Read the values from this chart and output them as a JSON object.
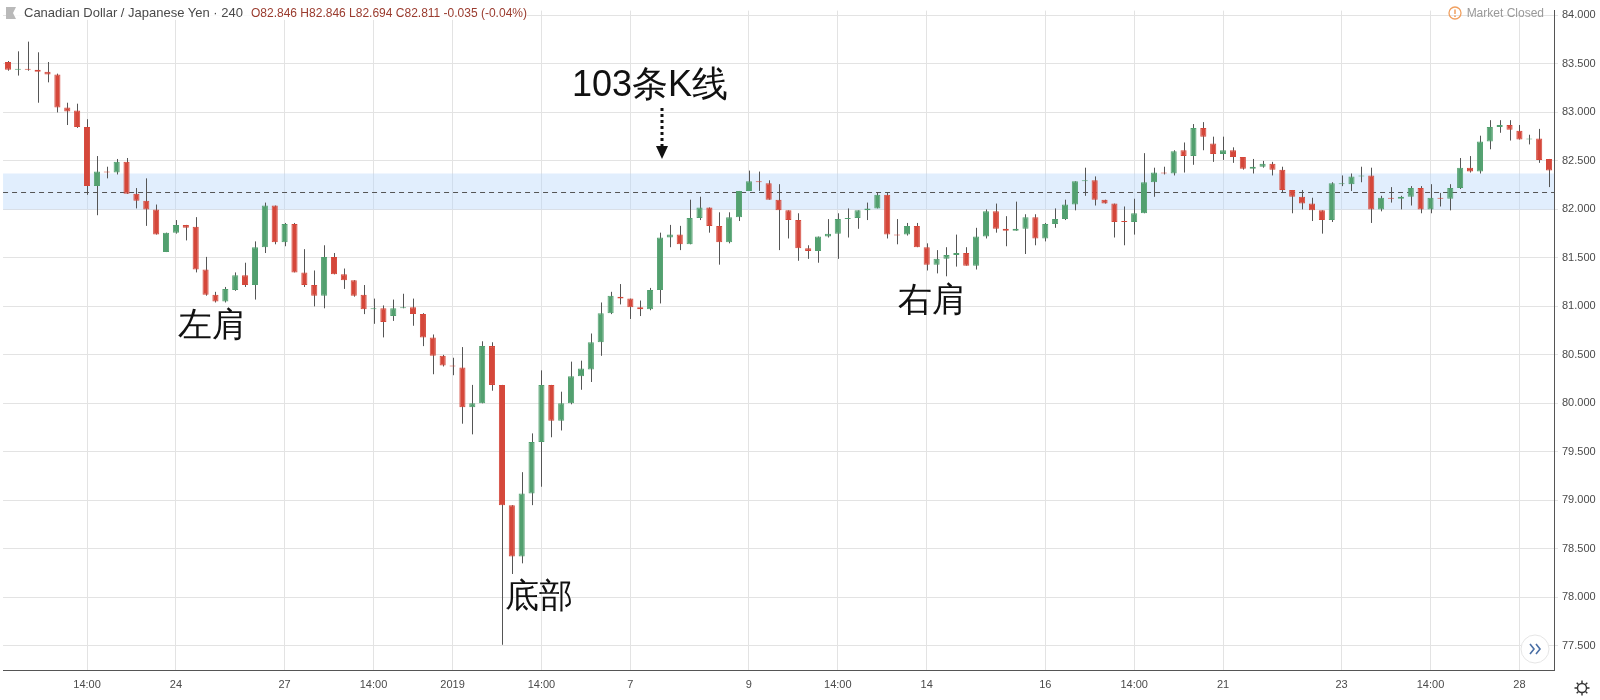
{
  "chart_data": {
    "type": "candlestick",
    "title": "Canadian Dollar / Japanese Yen · 240",
    "subtitle": "O82.846 H82.846 L82.694 C82.811 -0.035 (-0.04%)",
    "annotations": [
      "Market Closed",
      "103条K线",
      "左肩",
      "底部",
      "右肩"
    ],
    "categories": [
      null,
      null,
      null,
      null,
      null,
      null,
      null,
      null,
      "14:00",
      null,
      null,
      null,
      null,
      null,
      null,
      null,
      null,
      "24",
      null,
      null,
      null,
      null,
      null,
      null,
      null,
      null,
      null,
      null,
      "27",
      null,
      null,
      null,
      null,
      null,
      null,
      null,
      null,
      "14:00",
      null,
      null,
      null,
      null,
      null,
      null,
      null,
      "2019",
      null,
      null,
      null,
      null,
      null,
      null,
      null,
      null,
      "14:00",
      null,
      null,
      null,
      null,
      null,
      null,
      null,
      null,
      "7",
      null,
      null,
      null,
      null,
      null,
      null,
      null,
      null,
      null,
      null,
      null,
      "9",
      null,
      null,
      null,
      null,
      null,
      null,
      null,
      null,
      "14:00",
      null,
      null,
      null,
      null,
      null,
      null,
      null,
      null,
      "14",
      null,
      null,
      null,
      null,
      null,
      null,
      null,
      null,
      null,
      null,
      null,
      "16",
      null,
      null,
      null,
      null,
      null,
      null,
      null,
      null,
      "14:00",
      null,
      null,
      null,
      null,
      null,
      null,
      null,
      null,
      "21",
      null,
      null,
      null,
      null,
      null,
      null,
      null,
      null,
      null,
      null,
      null,
      "23",
      null,
      null,
      null,
      null,
      null,
      null,
      null,
      null,
      "14:00",
      null,
      null,
      null,
      null,
      null,
      null,
      null,
      null,
      "28",
      null,
      null,
      null
    ],
    "ohlc": [
      [
        83.52,
        83.53,
        83.43,
        83.44
      ],
      [
        83.44,
        83.63,
        83.38,
        83.45
      ],
      [
        83.45,
        83.73,
        83.43,
        83.44
      ],
      [
        83.44,
        83.62,
        83.1,
        83.42
      ],
      [
        83.42,
        83.52,
        83.31,
        83.39
      ],
      [
        83.39,
        83.4,
        83.0,
        83.05
      ],
      [
        83.05,
        83.1,
        82.87,
        83.01
      ],
      [
        83.02,
        83.09,
        82.84,
        82.85
      ],
      [
        82.85,
        82.93,
        82.15,
        82.24
      ],
      [
        82.24,
        82.55,
        81.94,
        82.39
      ],
      [
        82.39,
        82.44,
        82.32,
        82.38
      ],
      [
        82.38,
        82.52,
        82.36,
        82.49
      ],
      [
        82.49,
        82.53,
        82.16,
        82.16
      ],
      [
        82.16,
        82.22,
        82.01,
        82.09
      ],
      [
        82.09,
        82.32,
        81.83,
        82.0
      ],
      [
        82.0,
        82.05,
        81.74,
        81.74
      ],
      [
        81.56,
        81.76,
        81.56,
        81.76
      ],
      [
        81.76,
        81.89,
        81.75,
        81.84
      ],
      [
        81.84,
        81.84,
        81.68,
        81.81
      ],
      [
        81.82,
        81.92,
        81.35,
        81.38
      ],
      [
        81.38,
        81.51,
        81.11,
        81.12
      ],
      [
        81.12,
        81.15,
        81.04,
        81.05
      ],
      [
        81.05,
        81.2,
        81.04,
        81.18
      ],
      [
        81.17,
        81.35,
        81.16,
        81.32
      ],
      [
        81.32,
        81.45,
        81.2,
        81.22
      ],
      [
        81.22,
        81.67,
        81.07,
        81.61
      ],
      [
        81.61,
        82.07,
        81.55,
        82.04
      ],
      [
        82.04,
        82.04,
        81.64,
        81.66
      ],
      [
        81.66,
        81.86,
        81.62,
        81.85
      ],
      [
        81.85,
        81.86,
        81.35,
        81.35
      ],
      [
        81.35,
        81.59,
        81.2,
        81.22
      ],
      [
        81.22,
        81.37,
        81.0,
        81.11
      ],
      [
        81.11,
        81.63,
        80.98,
        81.51
      ],
      [
        81.51,
        81.55,
        81.33,
        81.33
      ],
      [
        81.33,
        81.39,
        81.18,
        81.27
      ],
      [
        81.27,
        81.27,
        81.1,
        81.11
      ],
      [
        81.12,
        81.22,
        80.92,
        80.97
      ],
      [
        80.97,
        81.08,
        80.82,
        80.98
      ],
      [
        80.98,
        81.01,
        80.68,
        80.84
      ],
      [
        80.9,
        81.07,
        80.85,
        80.98
      ],
      [
        80.98,
        81.13,
        80.98,
        80.99
      ],
      [
        80.99,
        81.08,
        80.8,
        80.92
      ],
      [
        80.92,
        80.93,
        80.59,
        80.68
      ],
      [
        80.68,
        80.71,
        80.3,
        80.49
      ],
      [
        80.49,
        80.5,
        80.38,
        80.39
      ],
      [
        80.39,
        80.47,
        80.29,
        80.38
      ],
      [
        80.37,
        80.58,
        79.79,
        79.96
      ],
      [
        79.96,
        80.19,
        79.68,
        80.0
      ],
      [
        80.0,
        80.64,
        80.0,
        80.59
      ],
      [
        80.59,
        80.63,
        80.13,
        80.19
      ],
      [
        80.19,
        80.19,
        77.51,
        78.95
      ],
      [
        78.95,
        78.95,
        78.24,
        78.42
      ],
      [
        78.42,
        79.29,
        78.35,
        79.07
      ],
      [
        79.07,
        79.69,
        78.95,
        79.6
      ],
      [
        79.6,
        80.34,
        79.14,
        80.19
      ],
      [
        80.19,
        80.19,
        79.65,
        79.82
      ],
      [
        79.82,
        80.12,
        79.72,
        80.0
      ],
      [
        80.0,
        80.43,
        79.99,
        80.28
      ],
      [
        80.28,
        80.44,
        80.14,
        80.36
      ],
      [
        80.35,
        80.72,
        80.22,
        80.63
      ],
      [
        80.63,
        81.04,
        80.49,
        80.93
      ],
      [
        80.93,
        81.15,
        80.92,
        81.11
      ],
      [
        81.1,
        81.23,
        81.02,
        81.08
      ],
      [
        81.08,
        81.08,
        80.87,
        80.99
      ],
      [
        80.99,
        81.06,
        80.9,
        80.97
      ],
      [
        80.97,
        81.19,
        80.96,
        81.17
      ],
      [
        81.17,
        81.76,
        81.03,
        81.71
      ],
      [
        81.71,
        81.84,
        81.61,
        81.74
      ],
      [
        81.74,
        81.83,
        81.58,
        81.64
      ],
      [
        81.64,
        82.1,
        81.64,
        81.91
      ],
      [
        81.91,
        82.13,
        81.89,
        82.02
      ],
      [
        82.02,
        82.02,
        81.76,
        81.83
      ],
      [
        81.83,
        81.97,
        81.43,
        81.66
      ],
      [
        81.66,
        81.97,
        81.65,
        81.92
      ],
      [
        81.92,
        82.19,
        81.88,
        82.19
      ],
      [
        82.19,
        82.4,
        82.19,
        82.29
      ],
      [
        82.29,
        82.39,
        82.19,
        82.28
      ],
      [
        82.27,
        82.3,
        82.1,
        82.1
      ],
      [
        82.1,
        82.26,
        81.58,
        81.99
      ],
      [
        81.99,
        81.99,
        81.7,
        81.89
      ],
      [
        81.89,
        81.96,
        81.47,
        81.6
      ],
      [
        81.6,
        81.63,
        81.49,
        81.57
      ],
      [
        81.57,
        81.72,
        81.45,
        81.72
      ],
      [
        81.72,
        81.9,
        81.71,
        81.75
      ],
      [
        81.75,
        81.96,
        81.49,
        81.9
      ],
      [
        81.9,
        82.01,
        81.71,
        81.91
      ],
      [
        81.91,
        81.99,
        81.8,
        81.99
      ],
      [
        81.99,
        82.07,
        81.89,
        82.01
      ],
      [
        82.01,
        82.17,
        82.01,
        82.15
      ],
      [
        82.15,
        82.17,
        81.7,
        81.74
      ],
      [
        81.74,
        81.9,
        81.64,
        81.73
      ],
      [
        81.74,
        81.86,
        81.73,
        81.83
      ],
      [
        81.83,
        81.86,
        81.61,
        81.61
      ],
      [
        81.61,
        81.65,
        81.37,
        81.43
      ],
      [
        81.43,
        81.58,
        81.34,
        81.49
      ],
      [
        81.49,
        81.61,
        81.31,
        81.53
      ],
      [
        81.53,
        81.74,
        81.41,
        81.55
      ],
      [
        81.55,
        81.61,
        81.42,
        81.42
      ],
      [
        81.42,
        81.81,
        81.38,
        81.72
      ],
      [
        81.72,
        82.0,
        81.7,
        81.98
      ],
      [
        81.98,
        82.06,
        81.76,
        81.8
      ],
      [
        81.8,
        81.93,
        81.62,
        81.78
      ],
      [
        81.78,
        82.08,
        81.78,
        81.8
      ],
      [
        81.8,
        81.95,
        81.54,
        81.92
      ],
      [
        81.92,
        81.95,
        81.63,
        81.7
      ],
      [
        81.7,
        81.86,
        81.67,
        81.85
      ],
      [
        81.85,
        82.01,
        81.81,
        81.9
      ],
      [
        81.9,
        82.1,
        81.89,
        82.05
      ],
      [
        82.05,
        82.29,
        81.99,
        82.29
      ],
      [
        82.29,
        82.43,
        82.14,
        82.3
      ],
      [
        82.3,
        82.34,
        82.04,
        82.1
      ],
      [
        82.1,
        82.1,
        82.06,
        82.06
      ],
      [
        82.06,
        82.06,
        81.71,
        81.87
      ],
      [
        81.88,
        82.03,
        81.63,
        81.87
      ],
      [
        81.87,
        82.11,
        81.74,
        81.96
      ],
      [
        81.96,
        82.58,
        81.96,
        82.28
      ],
      [
        82.28,
        82.43,
        82.13,
        82.38
      ],
      [
        82.38,
        82.44,
        82.36,
        82.37
      ],
      [
        82.37,
        82.61,
        82.35,
        82.6
      ],
      [
        82.61,
        82.69,
        82.38,
        82.55
      ],
      [
        82.55,
        82.88,
        82.46,
        82.84
      ],
      [
        82.84,
        82.9,
        82.61,
        82.75
      ],
      [
        82.68,
        82.75,
        82.49,
        82.57
      ],
      [
        82.57,
        82.75,
        82.51,
        82.61
      ],
      [
        82.61,
        82.64,
        82.48,
        82.54
      ],
      [
        82.54,
        82.54,
        82.41,
        82.42
      ],
      [
        82.42,
        82.52,
        82.37,
        82.44
      ],
      [
        82.44,
        82.5,
        82.43,
        82.47
      ],
      [
        82.47,
        82.49,
        82.35,
        82.41
      ],
      [
        82.41,
        82.44,
        82.17,
        82.2
      ],
      [
        82.2,
        82.2,
        81.96,
        82.13
      ],
      [
        82.13,
        82.2,
        82.0,
        82.06
      ],
      [
        82.06,
        82.12,
        81.88,
        81.99
      ],
      [
        81.99,
        81.99,
        81.75,
        81.89
      ],
      [
        81.89,
        82.28,
        81.87,
        82.27
      ],
      [
        82.26,
        82.35,
        82.24,
        82.27
      ],
      [
        82.26,
        82.37,
        82.19,
        82.34
      ],
      [
        82.34,
        82.44,
        82.28,
        82.35
      ],
      [
        82.35,
        82.43,
        81.86,
        82.0
      ],
      [
        82.0,
        82.14,
        81.98,
        82.12
      ],
      [
        82.12,
        82.23,
        82.07,
        82.11
      ],
      [
        82.11,
        82.14,
        82.0,
        82.13
      ],
      [
        82.13,
        82.24,
        82.04,
        82.22
      ],
      [
        82.22,
        82.24,
        81.96,
        82.0
      ],
      [
        82.0,
        82.26,
        81.96,
        82.12
      ],
      [
        82.12,
        82.17,
        82.03,
        82.11
      ],
      [
        82.11,
        82.26,
        81.99,
        82.22
      ],
      [
        82.22,
        82.53,
        82.21,
        82.43
      ],
      [
        82.43,
        82.55,
        82.38,
        82.39
      ],
      [
        82.39,
        82.76,
        82.37,
        82.7
      ],
      [
        82.7,
        82.92,
        82.62,
        82.85
      ],
      [
        82.85,
        82.92,
        82.79,
        82.87
      ],
      [
        82.87,
        82.92,
        82.71,
        82.82
      ],
      [
        82.81,
        82.87,
        82.72,
        82.72
      ],
      [
        82.72,
        82.77,
        82.67,
        82.73
      ],
      [
        82.73,
        82.83,
        82.48,
        82.51
      ],
      [
        82.52,
        82.52,
        82.23,
        82.4
      ]
    ],
    "colors": [
      "#d5473a",
      "#52a06f",
      "#d5473a",
      "#d5473a",
      "#d5473a",
      "#d5473a",
      "#d5473a",
      "#d5473a",
      "#d5473a",
      "#52a06f",
      "#d5473a",
      "#52a06f",
      "#d5473a",
      "#d5473a",
      "#d5473a",
      "#d5473a",
      "#52a06f",
      "#52a06f",
      "#d5473a",
      "#d5473a",
      "#d5473a",
      "#d5473a",
      "#52a06f",
      "#52a06f",
      "#d5473a",
      "#52a06f",
      "#52a06f",
      "#d5473a",
      "#52a06f",
      "#d5473a",
      "#d5473a",
      "#d5473a",
      "#52a06f",
      "#d5473a",
      "#d5473a",
      "#d5473a",
      "#d5473a",
      "#52a06f",
      "#d5473a",
      "#52a06f",
      "#52a06f",
      "#d5473a",
      "#d5473a",
      "#d5473a",
      "#d5473a",
      "#d5473a",
      "#d5473a",
      "#52a06f",
      "#52a06f",
      "#d5473a",
      "#d5473a",
      "#d5473a",
      "#52a06f",
      "#52a06f",
      "#52a06f",
      "#d5473a",
      "#52a06f",
      "#52a06f",
      "#52a06f",
      "#52a06f",
      "#52a06f",
      "#52a06f",
      "#d5473a",
      "#d5473a",
      "#d5473a",
      "#52a06f",
      "#52a06f",
      "#52a06f",
      "#d5473a",
      "#52a06f",
      "#52a06f",
      "#d5473a",
      "#d5473a",
      "#52a06f",
      "#52a06f",
      "#52a06f",
      "#d5473a",
      "#d5473a",
      "#d5473a",
      "#d5473a",
      "#d5473a",
      "#d5473a",
      "#52a06f",
      "#52a06f",
      "#52a06f",
      "#52a06f",
      "#52a06f",
      "#52a06f",
      "#52a06f",
      "#d5473a",
      "#d5473a",
      "#52a06f",
      "#d5473a",
      "#d5473a",
      "#52a06f",
      "#52a06f",
      "#52a06f",
      "#d5473a",
      "#52a06f",
      "#52a06f",
      "#d5473a",
      "#d5473a",
      "#52a06f",
      "#52a06f",
      "#d5473a",
      "#52a06f",
      "#52a06f",
      "#52a06f",
      "#52a06f",
      "#52a06f",
      "#d5473a",
      "#d5473a",
      "#d5473a",
      "#d5473a",
      "#52a06f",
      "#52a06f",
      "#52a06f",
      "#d5473a",
      "#52a06f",
      "#d5473a",
      "#52a06f",
      "#d5473a",
      "#d5473a",
      "#52a06f",
      "#d5473a",
      "#d5473a",
      "#52a06f",
      "#52a06f",
      "#d5473a",
      "#d5473a",
      "#d5473a",
      "#d5473a",
      "#d5473a",
      "#d5473a",
      "#52a06f",
      "#52a06f",
      "#52a06f",
      "#52a06f",
      "#d5473a",
      "#52a06f",
      "#d5473a",
      "#52a06f",
      "#52a06f",
      "#d5473a",
      "#52a06f",
      "#d5473a",
      "#52a06f",
      "#52a06f",
      "#d5473a",
      "#52a06f",
      "#52a06f",
      "#52a06f",
      "#d5473a",
      "#d5473a",
      "#52a06f",
      "#d5473a",
      "#d5473a"
    ],
    "ylim": [
      77.25,
      84.05
    ],
    "yticks": [
      {
        "value": 77.5,
        "label": "77.500"
      },
      {
        "value": 78,
        "label": "78.000"
      },
      {
        "value": 78.5,
        "label": "78.500"
      },
      {
        "value": 79,
        "label": "79.000"
      },
      {
        "value": 79.5,
        "label": "79.500"
      },
      {
        "value": 80,
        "label": "80.000"
      },
      {
        "value": 80.5,
        "label": "80.500"
      },
      {
        "value": 81,
        "label": "81.000"
      },
      {
        "value": 81.5,
        "label": "81.500"
      },
      {
        "value": 82,
        "label": "82.000"
      },
      {
        "value": 82.5,
        "label": "82.500"
      },
      {
        "value": 83,
        "label": "83.000"
      },
      {
        "value": 83.5,
        "label": "83.500"
      },
      {
        "value": 84,
        "label": "84.000"
      }
    ],
    "bands": [
      {
        "axis": "y",
        "from": 82.0,
        "to": 82.37,
        "color": "#b3d4fb"
      }
    ],
    "ref_lines": [
      {
        "axis": "y",
        "value": 82.18,
        "color": "#555555",
        "line_style": "dashed"
      }
    ],
    "grid": true
  }
}
